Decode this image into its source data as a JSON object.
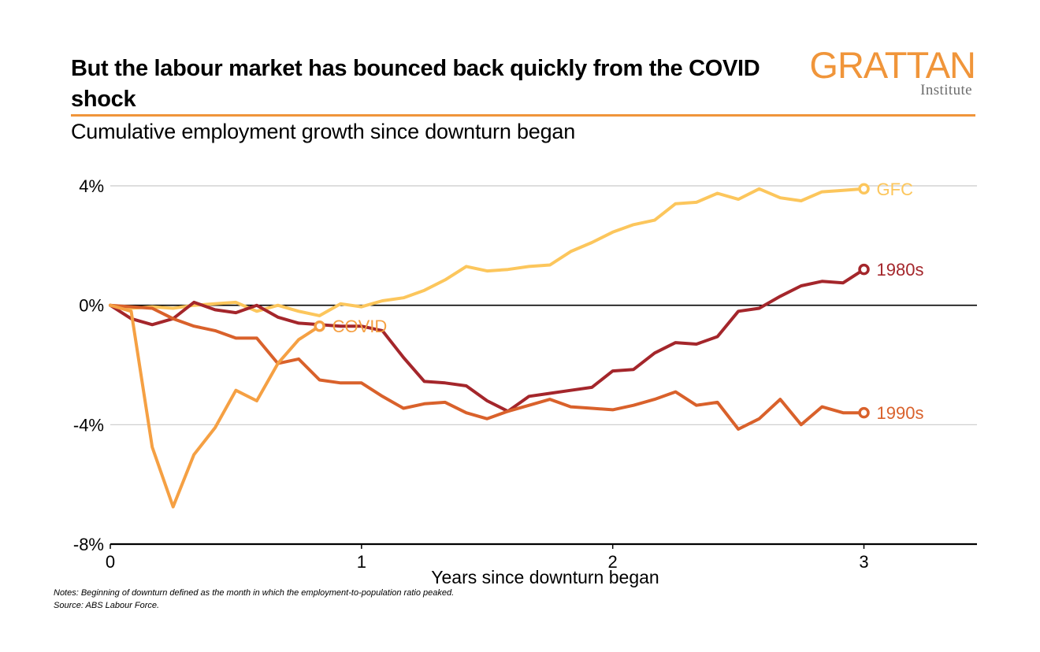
{
  "title": "But the labour market has bounced back quickly from the COVID shock",
  "subtitle": "Cumulative employment growth since downturn began",
  "logo": {
    "main": "GRATTAN",
    "sub": "Institute"
  },
  "notes": "Notes: Beginning of downturn defined as the month in which the employment-to-population ratio peaked.",
  "source": "Source: ABS Labour Force.",
  "colors": {
    "accent": "#f0953a",
    "GFC": "#fcc65c",
    "1980s": "#a4262b",
    "1990s": "#d9612b",
    "COVID": "#f5a043"
  },
  "chart_data": {
    "type": "line",
    "xlabel": "Years since downturn began",
    "ylabel": "",
    "xlim": [
      0,
      3.45
    ],
    "ylim": [
      -8,
      4
    ],
    "x_ticks": [
      0,
      1,
      2,
      3
    ],
    "x_tick_labels": [
      "0",
      "1",
      "2",
      "3"
    ],
    "y_ticks": [
      4,
      0,
      -4,
      -8
    ],
    "y_tick_labels": [
      "4%",
      "0%",
      "-4%",
      "-8%"
    ],
    "grid": true,
    "legend": "direct labels at line ends",
    "series": [
      {
        "name": "GFC",
        "color": "#fcc65c",
        "x": [
          0,
          0.083,
          0.167,
          0.25,
          0.333,
          0.417,
          0.5,
          0.583,
          0.667,
          0.75,
          0.833,
          0.917,
          1.0,
          1.083,
          1.167,
          1.25,
          1.333,
          1.417,
          1.5,
          1.583,
          1.667,
          1.75,
          1.833,
          1.917,
          2.0,
          2.083,
          2.167,
          2.25,
          2.333,
          2.417,
          2.5,
          2.583,
          2.667,
          2.75,
          2.833,
          2.917,
          3.0
        ],
        "y": [
          0,
          -0.1,
          -0.05,
          -0.1,
          0,
          0.05,
          0.1,
          -0.2,
          0,
          -0.2,
          -0.35,
          0.05,
          -0.05,
          0.15,
          0.25,
          0.5,
          0.85,
          1.3,
          1.15,
          1.2,
          1.3,
          1.35,
          1.8,
          2.1,
          2.45,
          2.7,
          2.85,
          3.4,
          3.45,
          3.75,
          3.55,
          3.9,
          3.6,
          3.5,
          3.8,
          3.85,
          3.9
        ]
      },
      {
        "name": "1980s",
        "color": "#a4262b",
        "x": [
          0,
          0.083,
          0.167,
          0.25,
          0.333,
          0.417,
          0.5,
          0.583,
          0.667,
          0.75,
          0.833,
          0.917,
          1.0,
          1.083,
          1.167,
          1.25,
          1.333,
          1.417,
          1.5,
          1.583,
          1.667,
          1.75,
          1.833,
          1.917,
          2.0,
          2.083,
          2.167,
          2.25,
          2.333,
          2.417,
          2.5,
          2.583,
          2.667,
          2.75,
          2.833,
          2.917,
          3.0
        ],
        "y": [
          0,
          -0.45,
          -0.65,
          -0.45,
          0.1,
          -0.15,
          -0.25,
          0,
          -0.4,
          -0.6,
          -0.65,
          -0.7,
          -0.7,
          -0.85,
          -1.75,
          -2.55,
          -2.6,
          -2.7,
          -3.2,
          -3.55,
          -3.05,
          -2.95,
          -2.85,
          -2.75,
          -2.2,
          -2.15,
          -1.6,
          -1.25,
          -1.3,
          -1.05,
          -0.2,
          -0.1,
          0.3,
          0.65,
          0.8,
          0.75,
          1.2
        ]
      },
      {
        "name": "1990s",
        "color": "#d9612b",
        "x": [
          0,
          0.083,
          0.167,
          0.25,
          0.333,
          0.417,
          0.5,
          0.583,
          0.667,
          0.75,
          0.833,
          0.917,
          1.0,
          1.083,
          1.167,
          1.25,
          1.333,
          1.417,
          1.5,
          1.583,
          1.667,
          1.75,
          1.833,
          1.917,
          2.0,
          2.083,
          2.167,
          2.25,
          2.333,
          2.417,
          2.5,
          2.583,
          2.667,
          2.75,
          2.833,
          2.917,
          3.0
        ],
        "y": [
          0,
          -0.05,
          -0.1,
          -0.45,
          -0.7,
          -0.85,
          -1.1,
          -1.1,
          -1.95,
          -1.8,
          -2.5,
          -2.6,
          -2.6,
          -3.05,
          -3.45,
          -3.3,
          -3.25,
          -3.6,
          -3.8,
          -3.55,
          -3.35,
          -3.15,
          -3.4,
          -3.45,
          -3.5,
          -3.35,
          -3.15,
          -2.9,
          -3.35,
          -3.25,
          -4.15,
          -3.8,
          -3.15,
          -4.0,
          -3.4,
          -3.6,
          -3.6
        ]
      },
      {
        "name": "COVID",
        "color": "#f5a043",
        "x": [
          0,
          0.083,
          0.167,
          0.25,
          0.333,
          0.417,
          0.5,
          0.583,
          0.667,
          0.75,
          0.833
        ],
        "y": [
          0,
          -0.2,
          -4.75,
          -6.75,
          -5.0,
          -4.1,
          -2.85,
          -3.2,
          -1.95,
          -1.15,
          -0.7
        ]
      }
    ]
  }
}
